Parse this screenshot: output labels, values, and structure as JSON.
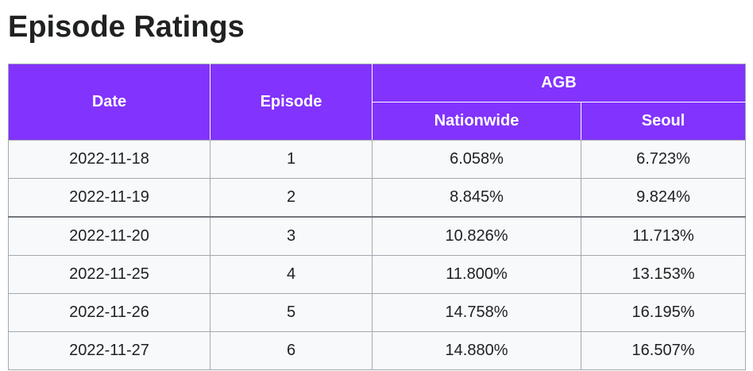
{
  "title": "Episode Ratings",
  "table": {
    "headers": {
      "date": "Date",
      "episode": "Episode",
      "group": "AGB",
      "nationwide": "Nationwide",
      "seoul": "Seoul"
    },
    "rows": [
      {
        "date": "2022-11-18",
        "episode": "1",
        "nationwide": "6.058%",
        "seoul": "6.723%"
      },
      {
        "date": "2022-11-19",
        "episode": "2",
        "nationwide": "8.845%",
        "seoul": "9.824%"
      },
      {
        "date": "2022-11-20",
        "episode": "3",
        "nationwide": "10.826%",
        "seoul": "11.713%"
      },
      {
        "date": "2022-11-25",
        "episode": "4",
        "nationwide": "11.800%",
        "seoul": "13.153%"
      },
      {
        "date": "2022-11-26",
        "episode": "5",
        "nationwide": "14.758%",
        "seoul": "16.195%"
      },
      {
        "date": "2022-11-27",
        "episode": "6",
        "nationwide": "14.880%",
        "seoul": "16.507%"
      }
    ]
  },
  "colors": {
    "header_bg": "#8233fe",
    "header_text": "#ffffff",
    "cell_bg": "#f8f9fa",
    "border": "#a2a9b1"
  }
}
